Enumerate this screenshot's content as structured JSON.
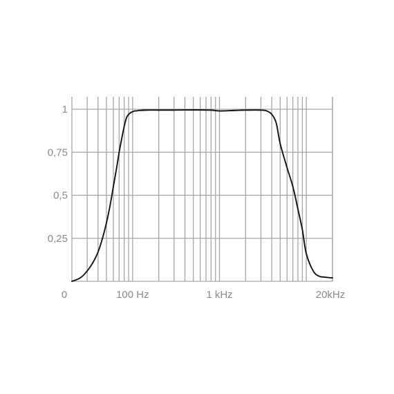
{
  "chart_data": {
    "type": "line",
    "title": "",
    "xlabel": "",
    "ylabel": "",
    "x_scale": "log",
    "xlim": [
      20,
      20000
    ],
    "ylim": [
      0,
      1
    ],
    "grid": true,
    "legend": "none",
    "y_ticks": [
      {
        "value": 1,
        "label": "1"
      },
      {
        "value": 0.75,
        "label": "0,75"
      },
      {
        "value": 0.5,
        "label": "0,5"
      },
      {
        "value": 0.25,
        "label": "0,25"
      }
    ],
    "x_ticks": [
      {
        "value": 20,
        "label": "0"
      },
      {
        "value": 100,
        "label": "100 Hz"
      },
      {
        "value": 1000,
        "label": "1 kHz"
      },
      {
        "value": 20000,
        "label": "20kHz"
      }
    ],
    "series": [
      {
        "x": [
          20,
          25,
          30,
          35,
          40,
          45,
          50,
          55,
          60,
          65,
          70,
          75,
          80,
          85,
          90,
          95,
          100,
          105,
          110,
          120,
          150,
          200,
          300,
          500,
          800,
          1000,
          1500,
          2000,
          3000,
          3500,
          4000,
          4500,
          5000,
          6000,
          7000,
          8000,
          9000,
          10000,
          12000,
          14000,
          16000,
          18000,
          20000
        ],
        "y": [
          0.0,
          0.02,
          0.06,
          0.11,
          0.17,
          0.25,
          0.34,
          0.44,
          0.55,
          0.65,
          0.75,
          0.83,
          0.9,
          0.95,
          0.97,
          0.98,
          0.985,
          0.99,
          0.99,
          0.993,
          0.995,
          0.995,
          0.995,
          0.996,
          0.995,
          0.99,
          0.993,
          0.995,
          0.995,
          0.99,
          0.97,
          0.92,
          0.8,
          0.66,
          0.55,
          0.42,
          0.3,
          0.16,
          0.06,
          0.03,
          0.025,
          0.022,
          0.02
        ]
      }
    ],
    "colors": {
      "line": "#111111",
      "grid": "#a6a6a6",
      "labels": "#8a8a8a"
    }
  }
}
